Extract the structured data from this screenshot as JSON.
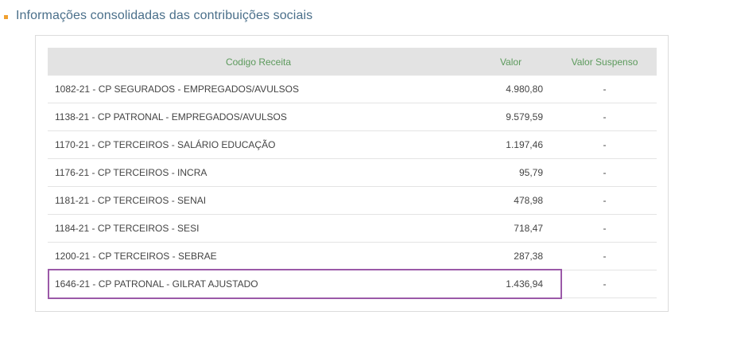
{
  "section": {
    "title": "Informações consolidadas das contribuições sociais"
  },
  "table": {
    "headers": {
      "codigo": "Codigo Receita",
      "valor": "Valor",
      "suspenso": "Valor Suspenso"
    },
    "rows": [
      {
        "codigo": "1082-21 - CP SEGURADOS - EMPREGADOS/AVULSOS",
        "valor": "4.980,80",
        "suspenso": "-"
      },
      {
        "codigo": "1138-21 - CP PATRONAL - EMPREGADOS/AVULSOS",
        "valor": "9.579,59",
        "suspenso": "-"
      },
      {
        "codigo": "1170-21 - CP TERCEIROS - SALÁRIO EDUCAÇÃO",
        "valor": "1.197,46",
        "suspenso": "-"
      },
      {
        "codigo": "1176-21 - CP TERCEIROS - INCRA",
        "valor": "95,79",
        "suspenso": "-"
      },
      {
        "codigo": "1181-21 - CP TERCEIROS - SENAI",
        "valor": "478,98",
        "suspenso": "-"
      },
      {
        "codigo": "1184-21 - CP TERCEIROS - SESI",
        "valor": "718,47",
        "suspenso": "-"
      },
      {
        "codigo": "1200-21 - CP TERCEIROS - SEBRAE",
        "valor": "287,38",
        "suspenso": "-"
      },
      {
        "codigo": "1646-21 - CP PATRONAL - GILRAT AJUSTADO",
        "valor": "1.436,94",
        "suspenso": "-"
      }
    ]
  },
  "colors": {
    "bullet": "#f0a030",
    "title": "#4a6f8a",
    "header_text": "#5c9a5c",
    "header_bg": "#e3e3e3",
    "highlight": "#9b59a8"
  }
}
